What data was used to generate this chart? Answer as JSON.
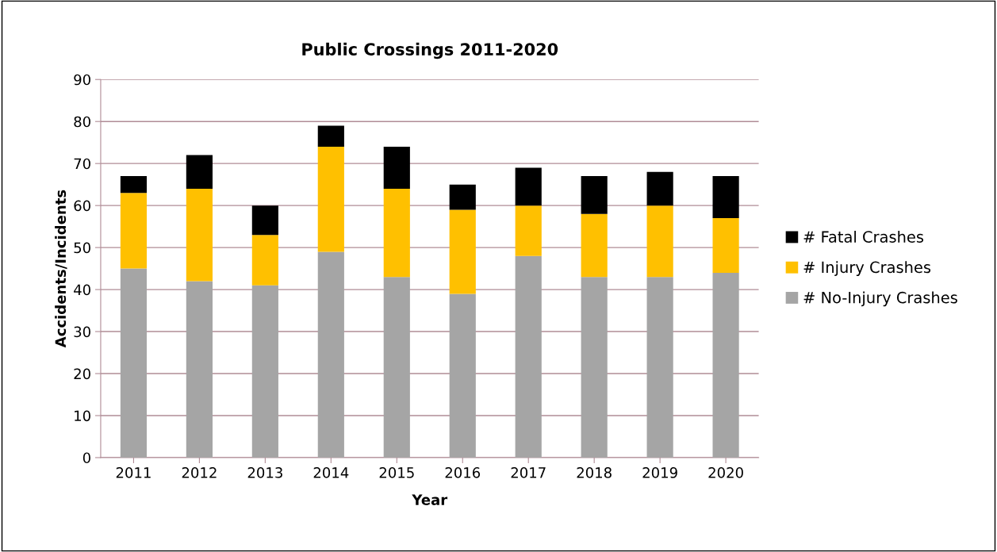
{
  "chart_data": {
    "type": "bar",
    "stacked": true,
    "title": "Public Crossings 2011-2020",
    "xlabel": "Year",
    "ylabel": "Accidents/Incidents",
    "categories": [
      "2011",
      "2012",
      "2013",
      "2014",
      "2015",
      "2016",
      "2017",
      "2018",
      "2019",
      "2020"
    ],
    "series": [
      {
        "name": "# No-Injury Crashes",
        "color": "#a5a5a5",
        "values": [
          45,
          42,
          41,
          49,
          43,
          39,
          48,
          43,
          43,
          44
        ]
      },
      {
        "name": "# Injury Crashes",
        "color": "#ffc000",
        "values": [
          18,
          22,
          12,
          25,
          21,
          20,
          12,
          15,
          17,
          13
        ]
      },
      {
        "name": "# Fatal Crashes",
        "color": "#000000",
        "values": [
          4,
          8,
          7,
          5,
          10,
          6,
          9,
          9,
          8,
          10
        ]
      }
    ],
    "ylim": [
      0,
      90
    ],
    "yticks": [
      0,
      10,
      20,
      30,
      40,
      50,
      60,
      70,
      80,
      90
    ],
    "grid": "y",
    "legend": "right"
  }
}
